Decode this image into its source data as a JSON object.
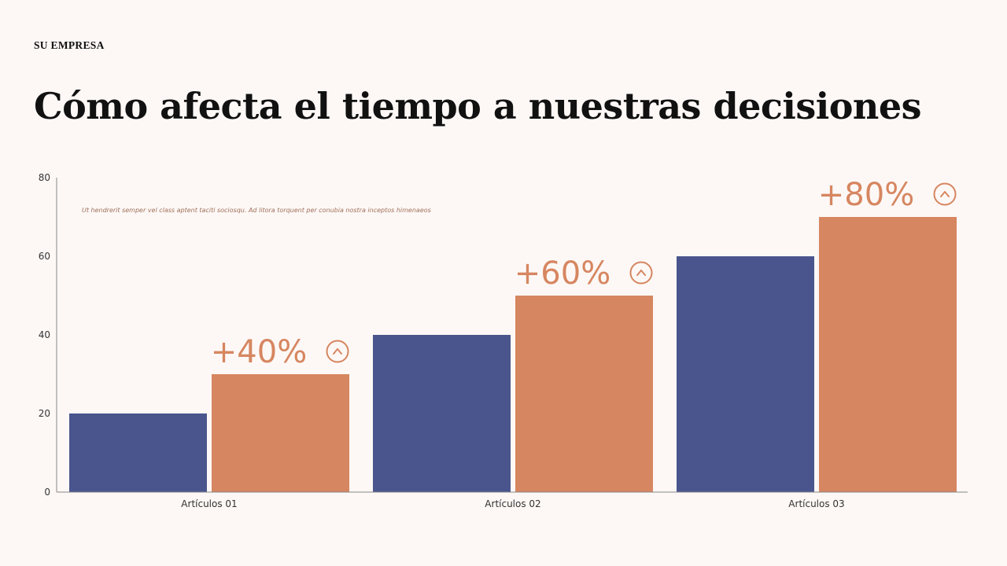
{
  "header": {
    "company": "SU EMPRESA",
    "title": "Cómo afecta el tiempo a nuestras decisiones"
  },
  "chart_data": {
    "type": "bar",
    "categories": [
      "Artículos 01",
      "Artículos 02",
      "Artículos 03"
    ],
    "series": [
      {
        "values": [
          20,
          40,
          60
        ],
        "color": "#4a558d"
      },
      {
        "values": [
          30,
          50,
          70
        ],
        "color": "#d68660"
      }
    ],
    "ylim": [
      0,
      80
    ],
    "yticks": [
      0,
      20,
      40,
      60,
      80
    ],
    "grid": false,
    "annotation": "Ut hendrerit semper vel class aptent taciti sociosqu. Ad litora torquent per conubia nostra inceptos himenaeos",
    "data_labels": [
      "+40%",
      "+60%",
      "+80%"
    ],
    "label_icon": "chevron-up-circle-icon",
    "label_color": "#d68660",
    "axis_color": "#888888"
  }
}
